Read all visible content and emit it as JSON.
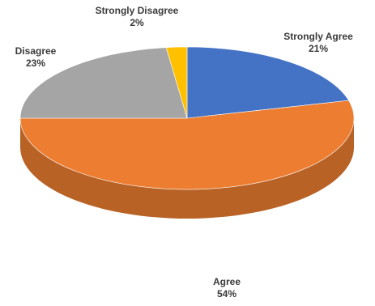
{
  "chart_data": {
    "type": "pie",
    "style": "3d",
    "slices": [
      {
        "label": "Strongly Agree",
        "value": 21,
        "percent_label": "21%",
        "color": "#4472C4"
      },
      {
        "label": "Agree",
        "value": 54,
        "percent_label": "54%",
        "color": "#ED7D31"
      },
      {
        "label": "Disagree",
        "value": 23,
        "percent_label": "23%",
        "color": "#A5A5A5"
      },
      {
        "label": "Strongly Disagree",
        "value": 2,
        "percent_label": "2%",
        "color": "#FFC000"
      }
    ]
  }
}
